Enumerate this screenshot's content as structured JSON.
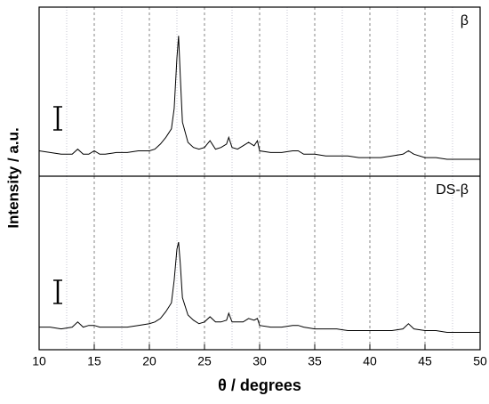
{
  "chart_data": [
    {
      "type": "line",
      "ylabel": "Intensity / a.u.",
      "xlim": [
        10,
        50
      ],
      "ylim": [
        0,
        100
      ],
      "grid": true,
      "x": [
        10,
        11,
        12,
        13,
        13.5,
        14,
        14.5,
        15,
        15.5,
        16,
        17,
        18,
        19,
        20,
        20.5,
        21,
        21.5,
        22,
        22.25,
        22.5,
        22.65,
        22.8,
        23,
        23.5,
        24,
        24.5,
        25,
        25.5,
        26,
        26.5,
        27,
        27.2,
        27.5,
        28,
        28.5,
        29,
        29.5,
        29.8,
        30,
        31,
        32,
        33,
        33.5,
        34,
        35,
        36,
        37,
        38,
        39,
        40,
        41,
        42,
        43,
        43.5,
        44,
        45,
        46,
        47,
        48,
        49,
        50
      ],
      "series": [
        {
          "name": "β",
          "color": "#000000",
          "values": [
            15,
            14,
            13,
            13,
            16,
            13,
            13,
            15,
            13,
            13,
            14,
            14,
            15,
            15,
            16,
            19,
            23,
            28,
            40,
            70,
            83,
            60,
            32,
            20,
            17,
            16,
            17,
            21,
            16,
            17,
            19,
            23,
            17,
            16,
            18,
            20,
            18,
            21,
            15,
            14,
            14,
            15,
            15,
            13,
            13,
            12,
            12,
            12,
            11,
            11,
            11,
            12,
            13,
            15,
            13,
            11,
            11,
            10,
            10,
            10,
            10
          ]
        }
      ]
    },
    {
      "type": "line",
      "xlabel": "θ / degrees",
      "xlim": [
        10,
        50
      ],
      "ylim": [
        0,
        100
      ],
      "grid": true,
      "xticks": [
        10,
        15,
        20,
        25,
        30,
        35,
        40,
        45,
        50
      ],
      "minor_xticks": [
        12.5,
        17.5,
        22.5,
        27.5,
        32.5,
        37.5,
        42.5,
        47.5
      ],
      "x": [
        10,
        11,
        12,
        13,
        13.5,
        14,
        14.5,
        15,
        15.5,
        16,
        17,
        18,
        19,
        20,
        20.5,
        21,
        21.5,
        22,
        22.25,
        22.5,
        22.65,
        22.8,
        23,
        23.5,
        24,
        24.5,
        25,
        25.5,
        26,
        26.5,
        27,
        27.2,
        27.5,
        28,
        28.5,
        29,
        29.5,
        29.8,
        30,
        31,
        32,
        33,
        33.5,
        34,
        35,
        36,
        37,
        38,
        39,
        40,
        41,
        42,
        43,
        43.5,
        44,
        45,
        46,
        47,
        48,
        49,
        50
      ],
      "series": [
        {
          "name": "DS-β",
          "color": "#000000",
          "values": [
            13,
            13,
            12,
            13,
            16,
            13,
            14,
            14,
            13,
            13,
            13,
            13,
            14,
            15,
            16,
            18,
            22,
            27,
            40,
            58,
            62,
            50,
            30,
            20,
            17,
            15,
            16,
            19,
            16,
            16,
            17,
            21,
            16,
            16,
            16,
            18,
            17,
            18,
            14,
            13,
            13,
            14,
            14,
            13,
            12,
            12,
            12,
            11,
            11,
            11,
            11,
            11,
            12,
            15,
            12,
            11,
            11,
            10,
            10,
            10,
            10
          ]
        }
      ]
    }
  ]
}
